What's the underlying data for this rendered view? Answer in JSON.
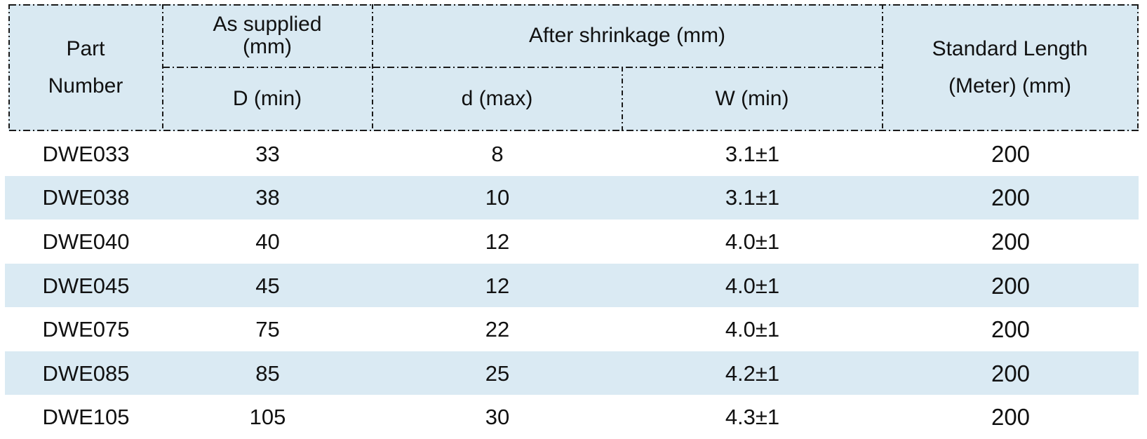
{
  "colors": {
    "header_bg": "#d9e9f2",
    "stripe_bg": "#daeaf3",
    "border": "#1a1a1a",
    "text": "#111111",
    "row_bg": "#ffffff"
  },
  "table": {
    "header": {
      "part_number": {
        "line1": "Part",
        "line2": "Number"
      },
      "as_supplied": {
        "line1": "As supplied",
        "line2": "(mm)"
      },
      "d_min": "D (min)",
      "after_shrinkage": "After shrinkage (mm)",
      "d_max": "d (max)",
      "w_min": "W (min)",
      "standard_length": {
        "line1": "Standard Length",
        "line2": "(Meter) (mm)"
      }
    },
    "rows": [
      {
        "part": "DWE033",
        "d_min": "33",
        "d_max": "8",
        "w_min": "3.1±1",
        "length": "200"
      },
      {
        "part": "DWE038",
        "d_min": "38",
        "d_max": "10",
        "w_min": "3.1±1",
        "length": "200"
      },
      {
        "part": "DWE040",
        "d_min": "40",
        "d_max": "12",
        "w_min": "4.0±1",
        "length": "200"
      },
      {
        "part": "DWE045",
        "d_min": "45",
        "d_max": "12",
        "w_min": "4.0±1",
        "length": "200"
      },
      {
        "part": "DWE075",
        "d_min": "75",
        "d_max": "22",
        "w_min": "4.0±1",
        "length": "200"
      },
      {
        "part": "DWE085",
        "d_min": "85",
        "d_max": "25",
        "w_min": "4.2±1",
        "length": "200"
      },
      {
        "part": "DWE105",
        "d_min": "105",
        "d_max": "30",
        "w_min": "4.3±1",
        "length": "200"
      }
    ]
  }
}
